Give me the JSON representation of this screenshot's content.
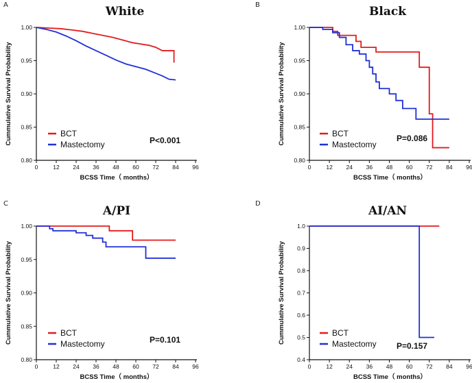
{
  "colors": {
    "BCT": "#e31a1c",
    "Mastectomy": "#1f2fd6",
    "axis": "#111111"
  },
  "chart_data": [
    {
      "type": "line",
      "panel": "A",
      "title": "White",
      "xlabel": "BCSS Time（ months）",
      "ylabel": "Cummulative Survival Probability",
      "xlim": [
        0,
        96
      ],
      "ylim": [
        0.8,
        1.0
      ],
      "xticks": [
        "0",
        "12",
        "24",
        "36",
        "48",
        "60",
        "72",
        "84",
        "96"
      ],
      "yticks": [
        "0.80",
        "0.85",
        "0.90",
        "0.95",
        "1.00"
      ],
      "p_value": "P<0.001",
      "legend": [
        "BCT",
        "Mastectomy"
      ],
      "series": [
        {
          "name": "BCT",
          "x": [
            0,
            8,
            15,
            22,
            28,
            34,
            40,
            46,
            52,
            58,
            63,
            68,
            72,
            76,
            80,
            83,
            83
          ],
          "y": [
            1.0,
            0.999,
            0.998,
            0.996,
            0.994,
            0.991,
            0.988,
            0.985,
            0.981,
            0.977,
            0.975,
            0.973,
            0.97,
            0.965,
            0.965,
            0.965,
            0.947
          ]
        },
        {
          "name": "Mastectomy",
          "x": [
            0,
            6,
            12,
            18,
            24,
            30,
            36,
            42,
            48,
            54,
            60,
            66,
            72,
            76,
            80,
            84
          ],
          "y": [
            1.0,
            0.997,
            0.993,
            0.987,
            0.98,
            0.972,
            0.965,
            0.958,
            0.951,
            0.945,
            0.941,
            0.937,
            0.931,
            0.927,
            0.922,
            0.921
          ]
        }
      ]
    },
    {
      "type": "line",
      "panel": "B",
      "title": "Black",
      "xlabel": "BCSS Time（ months）",
      "ylabel": "Cummulative Survival Probability",
      "xlim": [
        0,
        96
      ],
      "ylim": [
        0.8,
        1.0
      ],
      "xticks": [
        "0",
        "12",
        "24",
        "36",
        "48",
        "60",
        "72",
        "84",
        "96"
      ],
      "yticks": [
        "0.80",
        "0.85",
        "0.90",
        "0.95",
        "1.00"
      ],
      "p_value": "P=0.086",
      "legend": [
        "BCT",
        "Mastectomy"
      ],
      "series": [
        {
          "name": "BCT",
          "x": [
            0,
            14,
            17,
            28,
            31,
            34,
            40,
            66,
            72,
            74,
            76,
            84
          ],
          "y": [
            1.0,
            0.994,
            0.988,
            0.979,
            0.97,
            0.97,
            0.963,
            0.94,
            0.87,
            0.819,
            0.819,
            0.819
          ],
          "step": true
        },
        {
          "name": "Mastectomy",
          "x": [
            0,
            8,
            14,
            18,
            22,
            26,
            30,
            34,
            36,
            38,
            40,
            42,
            48,
            52,
            56,
            58,
            64,
            84
          ],
          "y": [
            1.0,
            0.997,
            0.992,
            0.985,
            0.974,
            0.965,
            0.96,
            0.95,
            0.94,
            0.93,
            0.918,
            0.908,
            0.9,
            0.89,
            0.878,
            0.878,
            0.862,
            0.862
          ],
          "step": true
        }
      ]
    },
    {
      "type": "line",
      "panel": "C",
      "title": "A/PI",
      "xlabel": "BCSS Time（ months）",
      "ylabel": "Cummulative Survival Probability",
      "xlim": [
        0,
        96
      ],
      "ylim": [
        0.8,
        1.0
      ],
      "xticks": [
        "0",
        "12",
        "24",
        "36",
        "48",
        "60",
        "72",
        "84",
        "96"
      ],
      "yticks": [
        "0.80",
        "0.85",
        "0.90",
        "0.95",
        "1.00"
      ],
      "p_value": "P=0.101",
      "legend": [
        "BCT",
        "Mastectomy"
      ],
      "series": [
        {
          "name": "BCT",
          "x": [
            0,
            44,
            58,
            84
          ],
          "y": [
            1.0,
            0.993,
            0.979,
            0.979
          ],
          "step": true
        },
        {
          "name": "Mastectomy",
          "x": [
            0,
            8,
            10,
            24,
            30,
            34,
            40,
            42,
            66,
            84
          ],
          "y": [
            1.0,
            0.996,
            0.993,
            0.99,
            0.986,
            0.982,
            0.976,
            0.969,
            0.952,
            0.952
          ],
          "step": true
        }
      ]
    },
    {
      "type": "line",
      "panel": "D",
      "title": "AI/AN",
      "xlabel": "BCSS Time（ months）",
      "ylabel": "Cummulative Survival Probability",
      "xlim": [
        0,
        96
      ],
      "ylim": [
        0.4,
        1.0
      ],
      "xticks": [
        "0",
        "12",
        "24",
        "36",
        "48",
        "60",
        "72",
        "84",
        "96"
      ],
      "yticks": [
        "0.4",
        "0.5",
        "0.6",
        "0.7",
        "0.8",
        "0.9",
        "1.0"
      ],
      "p_value": "P=0.157",
      "legend": [
        "BCT",
        "Mastectomy"
      ],
      "series": [
        {
          "name": "BCT",
          "x": [
            0,
            78
          ],
          "y": [
            1.0,
            1.0
          ],
          "step": true
        },
        {
          "name": "Mastectomy",
          "x": [
            0,
            66,
            75
          ],
          "y": [
            1.0,
            0.5,
            0.5
          ],
          "step": true
        }
      ]
    }
  ]
}
